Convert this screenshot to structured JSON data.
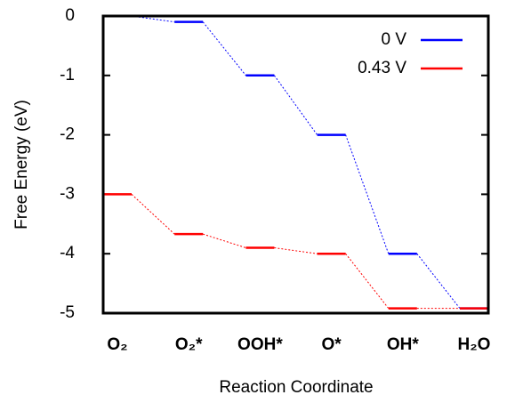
{
  "chart_data": {
    "type": "line",
    "categories": [
      "O₂",
      "O₂*",
      "OOH*",
      "O*",
      "OH*",
      "H₂O"
    ],
    "series": [
      {
        "name": "0 V",
        "color": "#0000ff",
        "values": [
          0,
          -0.1,
          -1,
          -2,
          -4,
          -4.92
        ]
      },
      {
        "name": "0.43 V",
        "color": "#ff0000",
        "values": [
          -3,
          -3.67,
          -3.9,
          -4,
          -4.92,
          -4.92
        ]
      }
    ],
    "ylabel": "Free Energy (eV)",
    "xlabel": "Reaction Coordinate",
    "ylim": [
      -5,
      0
    ],
    "yticks": [
      0,
      -1,
      -2,
      -3,
      -4,
      -5
    ],
    "legend": "upper right"
  }
}
